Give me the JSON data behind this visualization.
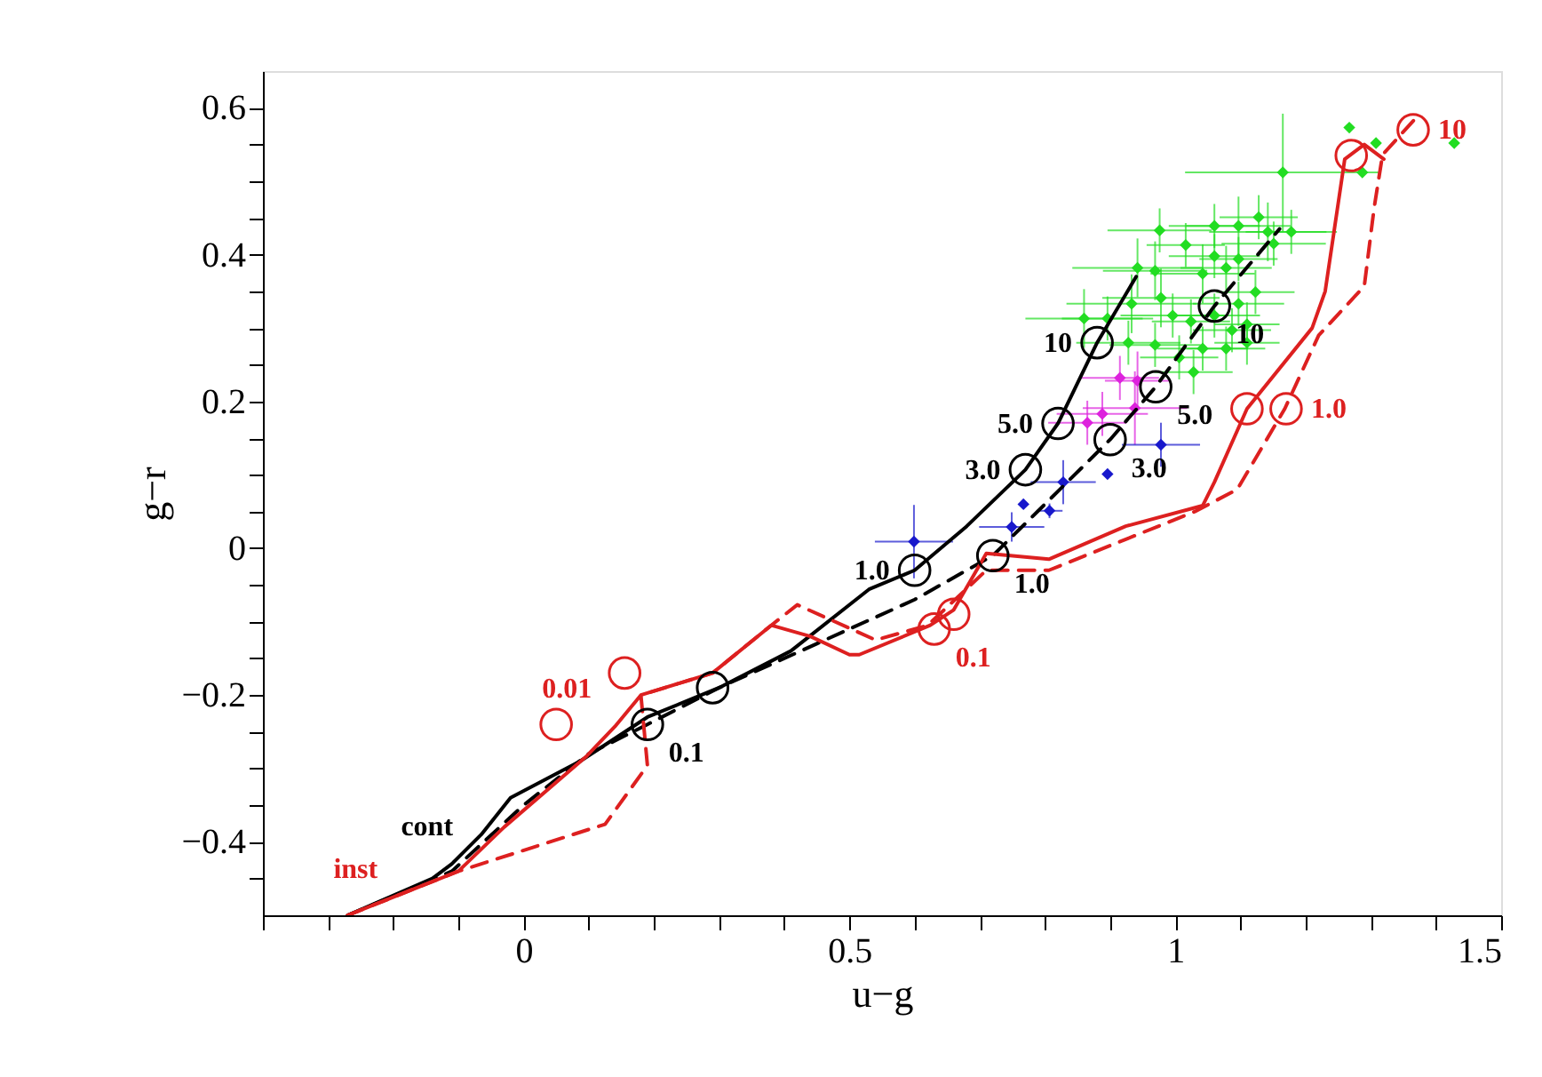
{
  "chart_data": {
    "type": "line",
    "xlabel": "u−g",
    "ylabel": "g−r",
    "xlim": [
      -0.4,
      1.5
    ],
    "ylim": [
      -0.5,
      0.65
    ],
    "xticks": [
      {
        "value": -0.4,
        "label": null
      },
      {
        "value": -0.3,
        "label": null
      },
      {
        "value": -0.2,
        "label": null
      },
      {
        "value": -0.1,
        "label": null
      },
      0,
      {
        "value": 0.1,
        "label": null
      },
      {
        "value": 0.2,
        "label": null
      },
      {
        "value": 0.3,
        "label": null
      },
      {
        "value": 0.4,
        "label": null
      },
      0.5,
      {
        "value": 0.6,
        "label": null
      },
      {
        "value": 0.7,
        "label": null
      },
      {
        "value": 0.8,
        "label": null
      },
      {
        "value": 0.9,
        "label": null
      },
      1,
      {
        "value": 1.1,
        "label": null
      },
      {
        "value": 1.2,
        "label": null
      },
      {
        "value": 1.3,
        "label": null
      },
      {
        "value": 1.4,
        "label": null
      },
      1.5
    ],
    "yticks": [
      {
        "value": -0.45,
        "label": null
      },
      -0.4,
      {
        "value": -0.35,
        "label": null
      },
      {
        "value": -0.3,
        "label": null
      },
      {
        "value": -0.25,
        "label": null
      },
      -0.2,
      {
        "value": -0.15,
        "label": null
      },
      {
        "value": -0.1,
        "label": null
      },
      {
        "value": -0.05,
        "label": null
      },
      0,
      {
        "value": 0.05,
        "label": null
      },
      {
        "value": 0.1,
        "label": null
      },
      {
        "value": 0.15,
        "label": null
      },
      0.2,
      {
        "value": 0.25,
        "label": null
      },
      {
        "value": 0.3,
        "label": null
      },
      {
        "value": 0.35,
        "label": null
      },
      0.4,
      {
        "value": 0.45,
        "label": null
      },
      {
        "value": 0.5,
        "label": null
      },
      {
        "value": 0.55,
        "label": null
      },
      0.6
    ],
    "series": [
      {
        "type": "scatter",
        "marker": "diamond",
        "color": "#22dd22",
        "x": [
          1.267,
          1.308,
          1.428,
          1.287,
          1.165,
          0.976,
          1.016,
          1.06,
          1.097,
          1.128,
          1.142,
          1.178,
          1.151,
          0.942,
          0.969,
          1.06,
          1.097,
          1.042,
          1.078,
          1.123,
          1.097,
          0.978,
          0.933,
          0.86,
          0.896,
          0.996,
          1.024,
          1.06,
          1.087,
          1.11,
          0.928,
          0.969,
          1.006,
          1.042,
          1.078,
          1.11,
          1.028
        ],
        "values": [
          0.573,
          0.552,
          0.552,
          0.512,
          0.512,
          0.433,
          0.413,
          0.439,
          0.439,
          0.451,
          0.431,
          0.431,
          0.415,
          0.382,
          0.378,
          0.398,
          0.394,
          0.374,
          0.382,
          0.349,
          0.333,
          0.341,
          0.333,
          0.313,
          0.313,
          0.317,
          0.309,
          0.317,
          0.297,
          0.305,
          0.28,
          0.277,
          0.26,
          0.272,
          0.272,
          0.28,
          0.24
        ],
        "xerrors": [
          null,
          null,
          null,
          null,
          0.15,
          0.08,
          0.06,
          0.07,
          0.08,
          0.06,
          0.09,
          0.07,
          0.08,
          0.1,
          0.08,
          0.07,
          0.06,
          0.08,
          0.07,
          0.06,
          0.07,
          0.09,
          0.1,
          0.09,
          0.07,
          0.08,
          0.06,
          0.07,
          0.06,
          0.05,
          0.08,
          0.07,
          0.06,
          0.07,
          0.06,
          0.05,
          0.06
        ],
        "errors": [
          null,
          null,
          null,
          null,
          0.08,
          0.03,
          0.03,
          0.03,
          0.04,
          0.03,
          0.04,
          0.03,
          0.03,
          0.04,
          0.04,
          0.03,
          0.03,
          0.04,
          0.03,
          0.03,
          0.03,
          0.04,
          0.04,
          0.04,
          0.03,
          0.03,
          0.03,
          0.03,
          0.03,
          0.03,
          0.03,
          0.03,
          0.03,
          0.03,
          0.03,
          0.03,
          0.03
        ]
      },
      {
        "type": "scatter",
        "marker": "diamond",
        "color": "#dd22dd",
        "x": [
          0.915,
          0.942,
          0.888,
          0.865,
          0.938
        ],
        "values": [
          0.232,
          0.228,
          0.183,
          0.171,
          0.191
        ],
        "xerrors": [
          0.06,
          0.05,
          0.07,
          0.06,
          0.08
        ],
        "errors": [
          0.03,
          0.04,
          0.03,
          0.03,
          0.05
        ]
      },
      {
        "type": "scatter",
        "marker": "diamond",
        "color": "#1818cc",
        "x": [
          0.978,
          0.896,
          0.828,
          0.767,
          0.807,
          0.749,
          0.599
        ],
        "values": [
          0.141,
          0.101,
          0.09,
          0.06,
          0.051,
          0.029,
          0.009
        ],
        "xerrors": [
          0.06,
          null,
          0.05,
          null,
          0.02,
          0.05,
          0.06
        ],
        "errors": [
          0.03,
          null,
          0.03,
          null,
          0.01,
          0.02,
          0.05
        ]
      },
      {
        "name": "cont",
        "line_style": "solid",
        "color": "#000000",
        "x": [
          -0.27,
          -0.14,
          -0.11,
          -0.065,
          -0.02,
          0.087,
          0.19,
          0.3,
          0.41,
          0.53,
          0.6,
          0.68,
          0.77,
          0.82,
          0.88,
          0.94
        ],
        "values": [
          -0.5,
          -0.45,
          -0.43,
          -0.39,
          -0.34,
          -0.29,
          -0.23,
          -0.19,
          -0.14,
          -0.056,
          -0.03,
          0.03,
          0.107,
          0.17,
          0.28,
          0.37
        ]
      },
      {
        "line_style": "dashed",
        "color": "#000000",
        "x": [
          -0.27,
          -0.11,
          0.0,
          0.1,
          0.19,
          0.3,
          0.45,
          0.6,
          0.72,
          0.8,
          0.9,
          0.97,
          1.06,
          1.16
        ],
        "values": [
          -0.5,
          -0.44,
          -0.35,
          -0.28,
          -0.24,
          -0.19,
          -0.13,
          -0.07,
          -0.01,
          0.06,
          0.148,
          0.22,
          0.33,
          0.435
        ]
      },
      {
        "name": "inst",
        "line_style": "solid",
        "color": "#dd2020",
        "x": [
          -0.27,
          -0.1,
          -0.03,
          0.097,
          0.14,
          0.18,
          0.29,
          0.38,
          0.44,
          0.5,
          0.515,
          0.624,
          0.66,
          0.71,
          0.806,
          0.924,
          1.042,
          1.06,
          1.11,
          1.21,
          1.23,
          1.26,
          1.29,
          1.32
        ],
        "values": [
          -0.5,
          -0.44,
          -0.38,
          -0.283,
          -0.243,
          -0.2,
          -0.17,
          -0.105,
          -0.12,
          -0.145,
          -0.145,
          -0.105,
          -0.084,
          -0.007,
          -0.015,
          0.03,
          0.058,
          0.09,
          0.19,
          0.3,
          0.35,
          0.53,
          0.55,
          0.53
        ]
      },
      {
        "line_style": "dashed",
        "color": "#dd2020",
        "x": [
          -0.27,
          -0.1,
          0.125,
          0.19,
          0.18,
          0.29,
          0.38,
          0.42,
          0.54,
          0.62,
          0.71,
          0.806,
          1.03,
          1.095,
          1.168,
          1.22,
          1.29,
          1.305,
          1.318,
          1.368
        ],
        "values": [
          -0.5,
          -0.44,
          -0.376,
          -0.296,
          -0.2,
          -0.17,
          -0.105,
          -0.077,
          -0.125,
          -0.105,
          -0.03,
          -0.03,
          0.05,
          0.08,
          0.19,
          0.29,
          0.357,
          0.463,
          0.536,
          0.585
        ]
      },
      {
        "type": "scatter",
        "marker": "circle",
        "color": "#000000",
        "x": [
          0.29,
          0.6,
          0.77,
          0.82,
          0.88
        ],
        "values": [
          -0.19,
          -0.03,
          0.107,
          0.17,
          0.28
        ]
      },
      {
        "type": "scatter",
        "marker": "circle",
        "color": "#000000",
        "x": [
          0.19,
          0.72,
          0.9,
          0.97,
          1.06
        ],
        "values": [
          -0.24,
          -0.01,
          0.148,
          0.22,
          0.33
        ]
      },
      {
        "type": "scatter",
        "marker": "circle",
        "color": "#dd2020",
        "x": [
          0.05
        ],
        "values": [
          -0.24
        ]
      },
      {
        "type": "scatter",
        "marker": "circle",
        "color": "#dd2020",
        "x": [
          0.63,
          1.11,
          1.27
        ],
        "values": [
          -0.11,
          0.19,
          0.535
        ]
      },
      {
        "type": "scatter",
        "marker": "circle",
        "color": "#dd2020",
        "x": [
          0.155,
          0.66,
          1.17,
          1.365
        ],
        "values": [
          -0.17,
          -0.09,
          0.19,
          0.57
        ]
      }
    ],
    "annotations": [
      {
        "text": "1.0",
        "x": 0.6,
        "y": -0.03
      },
      {
        "text": "3.0",
        "x": 0.77,
        "y": 0.107
      },
      {
        "text": "5.0",
        "x": 0.82,
        "y": 0.17
      },
      {
        "text": "10",
        "x": 0.88,
        "y": 0.28
      },
      {
        "text": "0.1",
        "x": 0.19,
        "y": -0.24
      },
      {
        "text": "1.0",
        "x": 0.72,
        "y": -0.01
      },
      {
        "text": "3.0",
        "x": 0.9,
        "y": 0.148
      },
      {
        "text": "5.0",
        "x": 0.97,
        "y": 0.22
      },
      {
        "text": "10",
        "x": 1.06,
        "y": 0.33
      },
      {
        "text": "0.01",
        "x": 0.05,
        "y": -0.24
      },
      {
        "text": "0.1",
        "x": 0.63,
        "y": -0.11
      },
      {
        "text": "1.0",
        "x": 1.17,
        "y": 0.19
      },
      {
        "text": "10",
        "x": 1.365,
        "y": 0.57
      }
    ]
  }
}
